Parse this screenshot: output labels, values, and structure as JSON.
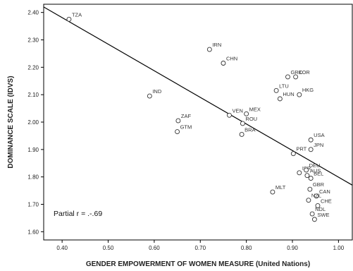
{
  "chart_data": {
    "type": "scatter",
    "title": "",
    "xlabel": "GENDER EMPOWERMENT OF WOMEN MEASURE (United Nations)",
    "ylabel": "DOMINANCE SCALE (IDVS)",
    "xlim": [
      0.36,
      1.03
    ],
    "ylim": [
      1.57,
      2.43
    ],
    "x_ticks": [
      0.4,
      0.5,
      0.6,
      0.7,
      0.8,
      0.9,
      1.0
    ],
    "x_tick_labels": [
      "0.40",
      "0.50",
      "0.60",
      "0.70",
      "0.80",
      "0.90",
      "1.00"
    ],
    "y_ticks": [
      1.6,
      1.7,
      1.8,
      1.9,
      2.0,
      2.1,
      2.2,
      2.3,
      2.4
    ],
    "y_tick_labels": [
      "1.60",
      "1.70",
      "1.80",
      "1.90",
      "2.00",
      "2.10",
      "2.20",
      "2.30",
      "2.40"
    ],
    "grid": false,
    "annotation": "Partial r = .-.69",
    "regression_line": {
      "x": [
        0.36,
        1.03
      ],
      "y": [
        2.42,
        1.77
      ]
    },
    "points": [
      {
        "label": "TZA",
        "x": 0.415,
        "y": 2.375
      },
      {
        "label": "IRN",
        "x": 0.72,
        "y": 2.265
      },
      {
        "label": "CHN",
        "x": 0.75,
        "y": 2.215
      },
      {
        "label": "IND",
        "x": 0.59,
        "y": 2.095
      },
      {
        "label": "KOR",
        "x": 0.907,
        "y": 2.165
      },
      {
        "label": "LTU",
        "x": 0.865,
        "y": 2.115
      },
      {
        "label": "GRC",
        "x": 0.89,
        "y": 2.165
      },
      {
        "label": "HKG",
        "x": 0.915,
        "y": 2.1
      },
      {
        "label": "HUN",
        "x": 0.873,
        "y": 2.085
      },
      {
        "label": "VEN",
        "x": 0.763,
        "y": 2.025
      },
      {
        "label": "MEX",
        "x": 0.8,
        "y": 2.03
      },
      {
        "label": "ZAF",
        "x": 0.652,
        "y": 2.005
      },
      {
        "label": "GTM",
        "x": 0.65,
        "y": 1.965
      },
      {
        "label": "ROU",
        "x": 0.792,
        "y": 1.995
      },
      {
        "label": "BRA",
        "x": 0.79,
        "y": 1.955
      },
      {
        "label": "USA",
        "x": 0.94,
        "y": 1.935
      },
      {
        "label": "PRT",
        "x": 0.902,
        "y": 1.885
      },
      {
        "label": "JPN",
        "x": 0.94,
        "y": 1.9
      },
      {
        "label": "ISR",
        "x": 0.915,
        "y": 1.815
      },
      {
        "label": "DEU",
        "x": 0.93,
        "y": 1.825
      },
      {
        "label": "AUS",
        "x": 0.932,
        "y": 1.805
      },
      {
        "label": "BEL",
        "x": 0.94,
        "y": 1.795
      },
      {
        "label": "GBR",
        "x": 0.938,
        "y": 1.755
      },
      {
        "label": "MLT",
        "x": 0.857,
        "y": 1.745
      },
      {
        "label": "CAN",
        "x": 0.952,
        "y": 1.73
      },
      {
        "label": "NZL",
        "x": 0.935,
        "y": 1.715
      },
      {
        "label": "CHE",
        "x": 0.955,
        "y": 1.695
      },
      {
        "label": "NDL",
        "x": 0.943,
        "y": 1.665
      },
      {
        "label": "SWE",
        "x": 0.948,
        "y": 1.645
      }
    ]
  }
}
